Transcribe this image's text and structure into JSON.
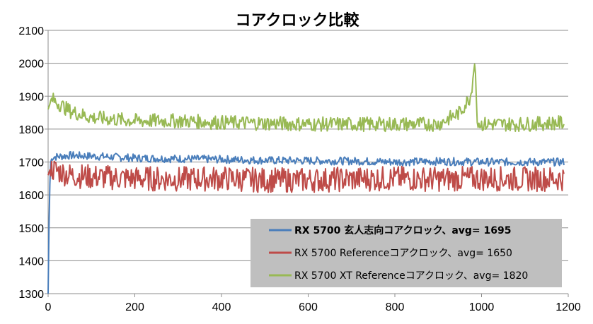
{
  "chart_data": {
    "type": "line",
    "title": "コアクロック比較",
    "xlabel": "",
    "ylabel": "",
    "xlim": [
      0,
      1200
    ],
    "ylim": [
      1300,
      2100
    ],
    "xticks": [
      0,
      200,
      400,
      600,
      800,
      1000,
      1200
    ],
    "yticks": [
      1300,
      1400,
      1500,
      1600,
      1700,
      1800,
      1900,
      2000,
      2100
    ],
    "grid": "horizontal",
    "legend_position": "bottom-right",
    "series": [
      {
        "name": "RX 5700 玄人志向コアクロック、avg= 1695",
        "color": "#4a7ebb",
        "legend_bold": true,
        "values": [
          [
            0,
            1300
          ],
          [
            3,
            1600
          ],
          [
            6,
            1700
          ],
          [
            10,
            1715
          ],
          [
            50,
            1720
          ],
          [
            100,
            1718
          ],
          [
            200,
            1712
          ],
          [
            300,
            1710
          ],
          [
            400,
            1708
          ],
          [
            500,
            1705
          ],
          [
            600,
            1704
          ],
          [
            700,
            1703
          ],
          [
            800,
            1700
          ],
          [
            900,
            1702
          ],
          [
            1000,
            1700
          ],
          [
            1100,
            1700
          ],
          [
            1200,
            1700
          ]
        ]
      },
      {
        "name": "RX 5700 Referenceコアクロック、avg= 1650",
        "color": "#be4b48",
        "legend_bold": false,
        "values": [
          [
            0,
            1660
          ],
          [
            5,
            1680
          ],
          [
            50,
            1660
          ],
          [
            100,
            1655
          ],
          [
            200,
            1650
          ],
          [
            300,
            1648
          ],
          [
            400,
            1650
          ],
          [
            500,
            1645
          ],
          [
            600,
            1645
          ],
          [
            700,
            1648
          ],
          [
            800,
            1650
          ],
          [
            900,
            1648
          ],
          [
            1000,
            1650
          ],
          [
            1100,
            1648
          ],
          [
            1200,
            1650
          ]
        ]
      },
      {
        "name": "RX 5700 XT Referenceコアクロック、avg= 1820",
        "color": "#98b954",
        "legend_bold": false,
        "values": [
          [
            0,
            1860
          ],
          [
            5,
            1880
          ],
          [
            10,
            1890
          ],
          [
            50,
            1855
          ],
          [
            100,
            1835
          ],
          [
            200,
            1825
          ],
          [
            300,
            1825
          ],
          [
            400,
            1820
          ],
          [
            500,
            1818
          ],
          [
            600,
            1815
          ],
          [
            700,
            1815
          ],
          [
            800,
            1815
          ],
          [
            900,
            1815
          ],
          [
            950,
            1850
          ],
          [
            975,
            1900
          ],
          [
            985,
            2008
          ],
          [
            990,
            1820
          ],
          [
            1000,
            1815
          ],
          [
            1100,
            1815
          ],
          [
            1200,
            1820
          ]
        ]
      }
    ]
  }
}
